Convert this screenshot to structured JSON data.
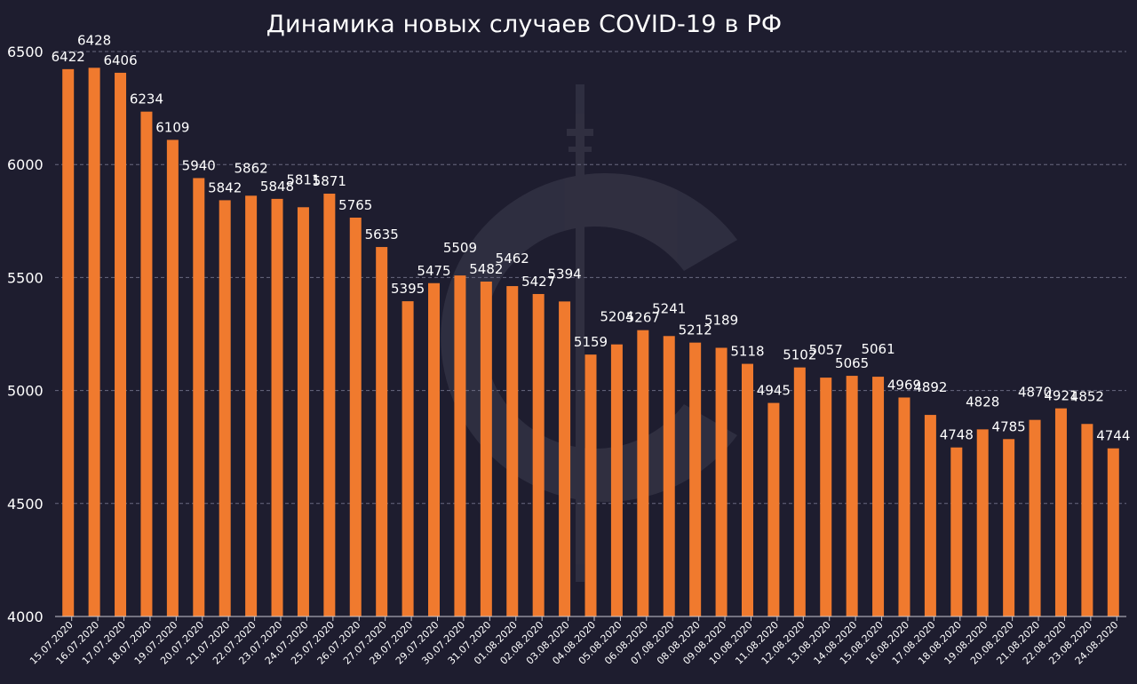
{
  "chart_data": {
    "type": "bar",
    "title": "Динамика новых случаев COVID-19 в РФ",
    "xlabel": "",
    "ylabel": "",
    "ylim": [
      4000,
      6500
    ],
    "yticks": [
      4000,
      4500,
      5000,
      5500,
      6000,
      6500
    ],
    "grid": true,
    "bar_color": "#f07a2e",
    "background": "#1e1d2f",
    "categories": [
      "15.07.2020",
      "16.07.2020",
      "17.07.2020",
      "18.07.2020",
      "19.07.2020",
      "20.07.2020",
      "21.07.2020",
      "22.07.2020",
      "23.07.2020",
      "24.07.2020",
      "25.07.2020",
      "26.07.2020",
      "27.07.2020",
      "28.07.2020",
      "29.07.2020",
      "30.07.2020",
      "31.07.2020",
      "01.08.2020",
      "02.08.2020",
      "03.08.2020",
      "04.08.2020",
      "05.08.2020",
      "06.08.2020",
      "07.08.2020",
      "08.08.2020",
      "09.08.2020",
      "10.08.2020",
      "11.08.2020",
      "12.08.2020",
      "13.08.2020",
      "14.08.2020",
      "15.08.2020",
      "16.08.2020",
      "17.08.2020",
      "18.08.2020",
      "19.08.2020",
      "20.08.2020",
      "21.08.2020",
      "22.08.2020",
      "23.08.2020",
      "24.08.2020"
    ],
    "values": [
      6422,
      6428,
      6406,
      6234,
      6109,
      5940,
      5842,
      5862,
      5848,
      5811,
      5871,
      5765,
      5635,
      5395,
      5475,
      5509,
      5482,
      5462,
      5427,
      5394,
      5159,
      5204,
      5267,
      5241,
      5212,
      5189,
      5118,
      4945,
      5102,
      5057,
      5065,
      5061,
      4969,
      4892,
      4748,
      4828,
      4785,
      4870,
      4921,
      4852,
      4744
    ]
  }
}
